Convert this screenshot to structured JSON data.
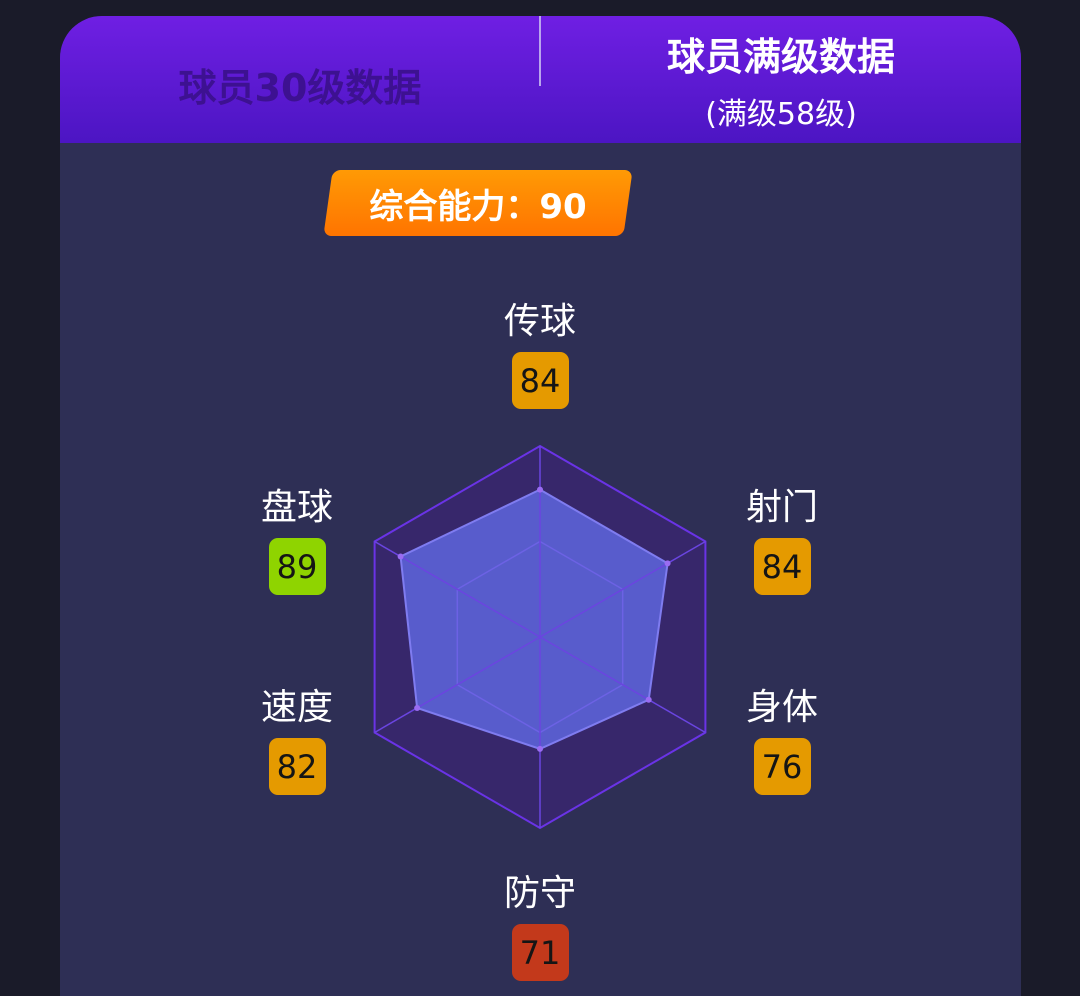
{
  "tabs": [
    {
      "label": "球员30级数据",
      "active": false
    },
    {
      "label": "球员满级数据",
      "sublabel": "(满级58级)",
      "active": true
    }
  ],
  "overall": {
    "label": "综合能力：90"
  },
  "colors": {
    "high": "#8fd400",
    "mid": "#e59a00",
    "low": "#c3391b",
    "fill": "#5b5fd0",
    "grid": "#6a33e6"
  },
  "chart_data": {
    "type": "radar",
    "categories": [
      "传球",
      "射门",
      "身体",
      "防守",
      "速度",
      "盘球"
    ],
    "values": [
      84,
      84,
      76,
      71,
      82,
      89
    ],
    "range": [
      30,
      100
    ]
  },
  "stats": [
    {
      "label": "传球",
      "value": "84",
      "level": "mid"
    },
    {
      "label": "射门",
      "value": "84",
      "level": "mid"
    },
    {
      "label": "身体",
      "value": "76",
      "level": "mid"
    },
    {
      "label": "防守",
      "value": "71",
      "level": "low"
    },
    {
      "label": "速度",
      "value": "82",
      "level": "mid"
    },
    {
      "label": "盘球",
      "value": "89",
      "level": "high"
    }
  ]
}
